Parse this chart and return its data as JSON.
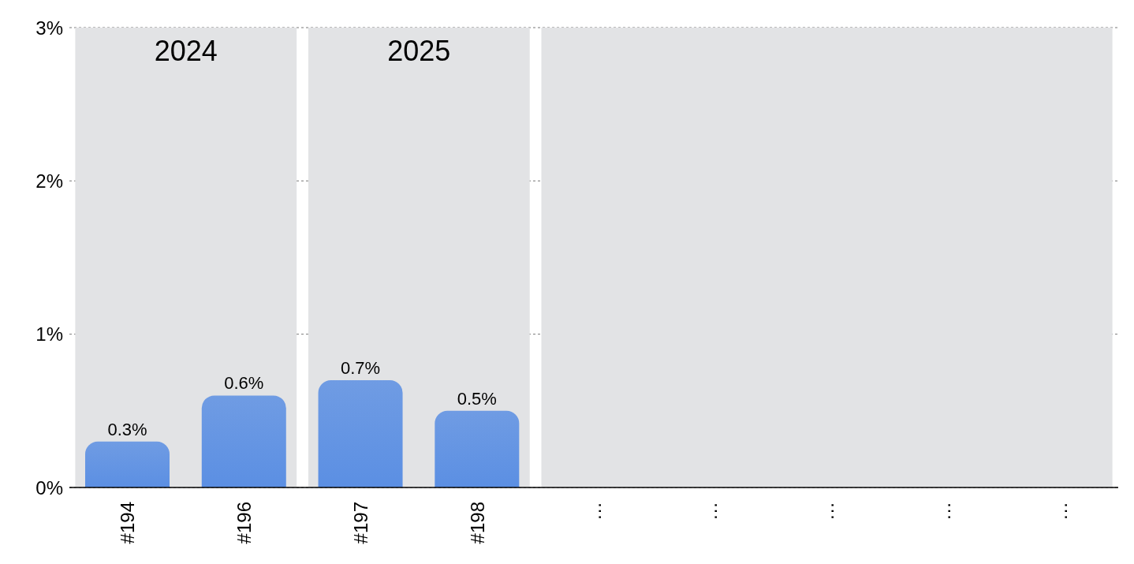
{
  "chart_data": {
    "type": "bar",
    "categories": [
      "#194",
      "#196",
      "#197",
      "#198",
      "…",
      "…",
      "…",
      "…",
      "…"
    ],
    "values": [
      0.3,
      0.6,
      0.7,
      0.5,
      null,
      null,
      null,
      null,
      null
    ],
    "value_labels": [
      "0.3%",
      "0.6%",
      "0.7%",
      "0.5%",
      null,
      null,
      null,
      null,
      null
    ],
    "color": "#5b8fe3",
    "ylim": [
      0,
      3
    ],
    "yticks": [
      {
        "value": 0,
        "label": "0%"
      },
      {
        "value": 1,
        "label": "1%"
      },
      {
        "value": 2,
        "label": "2%"
      },
      {
        "value": 3,
        "label": "3%"
      }
    ],
    "grid": "y",
    "bands": [
      {
        "axis": "x",
        "from": "#194",
        "to": "#196",
        "label": "2024",
        "color": "#e2e3e5"
      },
      {
        "axis": "x",
        "from": "#197",
        "to": "#198",
        "label": "2025",
        "color": "#e2e3e5"
      }
    ]
  }
}
